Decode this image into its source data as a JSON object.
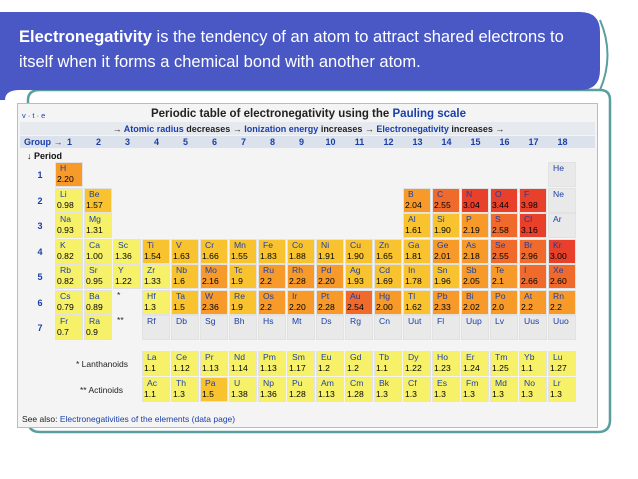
{
  "banner": {
    "term": "Electronegativity",
    "text": " is the tendency of an atom to attract shared electrons to itself when it forms a chemical bond with another atom."
  },
  "table": {
    "vte": "v · t · e",
    "title_prefix": "Periodic table of electronegativity using the ",
    "title_highlight": "Pauling scale",
    "trend_parts": [
      "→ ",
      "Atomic radius",
      " decreases → ",
      "Ionization energy",
      " increases → ",
      "Electronegativity",
      " increases →"
    ],
    "group_label": "Group →",
    "period_label": "↓ Period",
    "groups": [
      "1",
      "2",
      "3",
      "4",
      "5",
      "6",
      "7",
      "8",
      "9",
      "10",
      "11",
      "12",
      "13",
      "14",
      "15",
      "16",
      "17",
      "18"
    ],
    "periods": [
      "1",
      "2",
      "3",
      "4",
      "5",
      "6",
      "7"
    ],
    "lanthanoids_label": "* Lanthanoids",
    "actinoids_label": "** Actinoids",
    "see_also_prefix": "See also: ",
    "see_also_link": "Electronegativities of the elements (data page)",
    "colors": {
      "low": "#f7f16a",
      "mid": "#f9c32f",
      "midhigh": "#f79a2a",
      "high": "#f06a2b",
      "top": "#e8402a",
      "none": "#e9e9e9"
    },
    "elements": [
      {
        "s": "H",
        "v": "2.20",
        "p": 1,
        "g": 1
      },
      {
        "s": "He",
        "v": "",
        "p": 1,
        "g": 18
      },
      {
        "s": "Li",
        "v": "0.98",
        "p": 2,
        "g": 1
      },
      {
        "s": "Be",
        "v": "1.57",
        "p": 2,
        "g": 2
      },
      {
        "s": "B",
        "v": "2.04",
        "p": 2,
        "g": 13
      },
      {
        "s": "C",
        "v": "2.55",
        "p": 2,
        "g": 14
      },
      {
        "s": "N",
        "v": "3.04",
        "p": 2,
        "g": 15
      },
      {
        "s": "O",
        "v": "3.44",
        "p": 2,
        "g": 16
      },
      {
        "s": "F",
        "v": "3.98",
        "p": 2,
        "g": 17
      },
      {
        "s": "Ne",
        "v": "",
        "p": 2,
        "g": 18
      },
      {
        "s": "Na",
        "v": "0.93",
        "p": 3,
        "g": 1
      },
      {
        "s": "Mg",
        "v": "1.31",
        "p": 3,
        "g": 2
      },
      {
        "s": "Al",
        "v": "1.61",
        "p": 3,
        "g": 13
      },
      {
        "s": "Si",
        "v": "1.90",
        "p": 3,
        "g": 14
      },
      {
        "s": "P",
        "v": "2.19",
        "p": 3,
        "g": 15
      },
      {
        "s": "S",
        "v": "2.58",
        "p": 3,
        "g": 16
      },
      {
        "s": "Cl",
        "v": "3.16",
        "p": 3,
        "g": 17
      },
      {
        "s": "Ar",
        "v": "",
        "p": 3,
        "g": 18
      },
      {
        "s": "K",
        "v": "0.82",
        "p": 4,
        "g": 1
      },
      {
        "s": "Ca",
        "v": "1.00",
        "p": 4,
        "g": 2
      },
      {
        "s": "Sc",
        "v": "1.36",
        "p": 4,
        "g": 3
      },
      {
        "s": "Ti",
        "v": "1.54",
        "p": 4,
        "g": 4
      },
      {
        "s": "V",
        "v": "1.63",
        "p": 4,
        "g": 5
      },
      {
        "s": "Cr",
        "v": "1.66",
        "p": 4,
        "g": 6
      },
      {
        "s": "Mn",
        "v": "1.55",
        "p": 4,
        "g": 7
      },
      {
        "s": "Fe",
        "v": "1.83",
        "p": 4,
        "g": 8
      },
      {
        "s": "Co",
        "v": "1.88",
        "p": 4,
        "g": 9
      },
      {
        "s": "Ni",
        "v": "1.91",
        "p": 4,
        "g": 10
      },
      {
        "s": "Cu",
        "v": "1.90",
        "p": 4,
        "g": 11
      },
      {
        "s": "Zn",
        "v": "1.65",
        "p": 4,
        "g": 12
      },
      {
        "s": "Ga",
        "v": "1.81",
        "p": 4,
        "g": 13
      },
      {
        "s": "Ge",
        "v": "2.01",
        "p": 4,
        "g": 14
      },
      {
        "s": "As",
        "v": "2.18",
        "p": 4,
        "g": 15
      },
      {
        "s": "Se",
        "v": "2.55",
        "p": 4,
        "g": 16
      },
      {
        "s": "Br",
        "v": "2.96",
        "p": 4,
        "g": 17
      },
      {
        "s": "Kr",
        "v": "3.00",
        "p": 4,
        "g": 18
      },
      {
        "s": "Rb",
        "v": "0.82",
        "p": 5,
        "g": 1
      },
      {
        "s": "Sr",
        "v": "0.95",
        "p": 5,
        "g": 2
      },
      {
        "s": "Y",
        "v": "1.22",
        "p": 5,
        "g": 3
      },
      {
        "s": "Zr",
        "v": "1.33",
        "p": 5,
        "g": 4
      },
      {
        "s": "Nb",
        "v": "1.6",
        "p": 5,
        "g": 5
      },
      {
        "s": "Mo",
        "v": "2.16",
        "p": 5,
        "g": 6
      },
      {
        "s": "Tc",
        "v": "1.9",
        "p": 5,
        "g": 7
      },
      {
        "s": "Ru",
        "v": "2.2",
        "p": 5,
        "g": 8
      },
      {
        "s": "Rh",
        "v": "2.28",
        "p": 5,
        "g": 9
      },
      {
        "s": "Pd",
        "v": "2.20",
        "p": 5,
        "g": 10
      },
      {
        "s": "Ag",
        "v": "1.93",
        "p": 5,
        "g": 11
      },
      {
        "s": "Cd",
        "v": "1.69",
        "p": 5,
        "g": 12
      },
      {
        "s": "In",
        "v": "1.78",
        "p": 5,
        "g": 13
      },
      {
        "s": "Sn",
        "v": "1.96",
        "p": 5,
        "g": 14
      },
      {
        "s": "Sb",
        "v": "2.05",
        "p": 5,
        "g": 15
      },
      {
        "s": "Te",
        "v": "2.1",
        "p": 5,
        "g": 16
      },
      {
        "s": "I",
        "v": "2.66",
        "p": 5,
        "g": 17
      },
      {
        "s": "Xe",
        "v": "2.60",
        "p": 5,
        "g": 18
      },
      {
        "s": "Cs",
        "v": "0.79",
        "p": 6,
        "g": 1
      },
      {
        "s": "Ba",
        "v": "0.89",
        "p": 6,
        "g": 2
      },
      {
        "s": "*",
        "v": "",
        "p": 6,
        "g": 3
      },
      {
        "s": "Hf",
        "v": "1.3",
        "p": 6,
        "g": 4
      },
      {
        "s": "Ta",
        "v": "1.5",
        "p": 6,
        "g": 5
      },
      {
        "s": "W",
        "v": "2.36",
        "p": 6,
        "g": 6
      },
      {
        "s": "Re",
        "v": "1.9",
        "p": 6,
        "g": 7
      },
      {
        "s": "Os",
        "v": "2.2",
        "p": 6,
        "g": 8
      },
      {
        "s": "Ir",
        "v": "2.20",
        "p": 6,
        "g": 9
      },
      {
        "s": "Pt",
        "v": "2.28",
        "p": 6,
        "g": 10
      },
      {
        "s": "Au",
        "v": "2.54",
        "p": 6,
        "g": 11
      },
      {
        "s": "Hg",
        "v": "2.00",
        "p": 6,
        "g": 12
      },
      {
        "s": "Tl",
        "v": "1.62",
        "p": 6,
        "g": 13
      },
      {
        "s": "Pb",
        "v": "2.33",
        "p": 6,
        "g": 14
      },
      {
        "s": "Bi",
        "v": "2.02",
        "p": 6,
        "g": 15
      },
      {
        "s": "Po",
        "v": "2.0",
        "p": 6,
        "g": 16
      },
      {
        "s": "At",
        "v": "2.2",
        "p": 6,
        "g": 17
      },
      {
        "s": "Rn",
        "v": "2.2",
        "p": 6,
        "g": 18
      },
      {
        "s": "Fr",
        "v": "0.7",
        "p": 7,
        "g": 1
      },
      {
        "s": "Ra",
        "v": "0.9",
        "p": 7,
        "g": 2
      },
      {
        "s": "**",
        "v": "",
        "p": 7,
        "g": 3
      },
      {
        "s": "Rf",
        "v": "",
        "p": 7,
        "g": 4
      },
      {
        "s": "Db",
        "v": "",
        "p": 7,
        "g": 5
      },
      {
        "s": "Sg",
        "v": "",
        "p": 7,
        "g": 6
      },
      {
        "s": "Bh",
        "v": "",
        "p": 7,
        "g": 7
      },
      {
        "s": "Hs",
        "v": "",
        "p": 7,
        "g": 8
      },
      {
        "s": "Mt",
        "v": "",
        "p": 7,
        "g": 9
      },
      {
        "s": "Ds",
        "v": "",
        "p": 7,
        "g": 10
      },
      {
        "s": "Rg",
        "v": "",
        "p": 7,
        "g": 11
      },
      {
        "s": "Cn",
        "v": "",
        "p": 7,
        "g": 12
      },
      {
        "s": "Uut",
        "v": "",
        "p": 7,
        "g": 13
      },
      {
        "s": "Fl",
        "v": "",
        "p": 7,
        "g": 14
      },
      {
        "s": "Uup",
        "v": "",
        "p": 7,
        "g": 15
      },
      {
        "s": "Lv",
        "v": "",
        "p": 7,
        "g": 16
      },
      {
        "s": "Uus",
        "v": "",
        "p": 7,
        "g": 17
      },
      {
        "s": "Uuo",
        "v": "",
        "p": 7,
        "g": 18
      }
    ],
    "lanthanoids": [
      {
        "s": "La",
        "v": "1.1"
      },
      {
        "s": "Ce",
        "v": "1.12"
      },
      {
        "s": "Pr",
        "v": "1.13"
      },
      {
        "s": "Nd",
        "v": "1.14"
      },
      {
        "s": "Pm",
        "v": "1.13"
      },
      {
        "s": "Sm",
        "v": "1.17"
      },
      {
        "s": "Eu",
        "v": "1.2"
      },
      {
        "s": "Gd",
        "v": "1.2"
      },
      {
        "s": "Tb",
        "v": "1.1"
      },
      {
        "s": "Dy",
        "v": "1.22"
      },
      {
        "s": "Ho",
        "v": "1.23"
      },
      {
        "s": "Er",
        "v": "1.24"
      },
      {
        "s": "Tm",
        "v": "1.25"
      },
      {
        "s": "Yb",
        "v": "1.1"
      },
      {
        "s": "Lu",
        "v": "1.27"
      }
    ],
    "actinoids": [
      {
        "s": "Ac",
        "v": "1.1"
      },
      {
        "s": "Th",
        "v": "1.3"
      },
      {
        "s": "Pa",
        "v": "1.5"
      },
      {
        "s": "U",
        "v": "1.38"
      },
      {
        "s": "Np",
        "v": "1.36"
      },
      {
        "s": "Pu",
        "v": "1.28"
      },
      {
        "s": "Am",
        "v": "1.13"
      },
      {
        "s": "Cm",
        "v": "1.28"
      },
      {
        "s": "Bk",
        "v": "1.3"
      },
      {
        "s": "Cf",
        "v": "1.3"
      },
      {
        "s": "Es",
        "v": "1.3"
      },
      {
        "s": "Fm",
        "v": "1.3"
      },
      {
        "s": "Md",
        "v": "1.3"
      },
      {
        "s": "No",
        "v": "1.3"
      },
      {
        "s": "Lr",
        "v": "1.3"
      }
    ]
  }
}
